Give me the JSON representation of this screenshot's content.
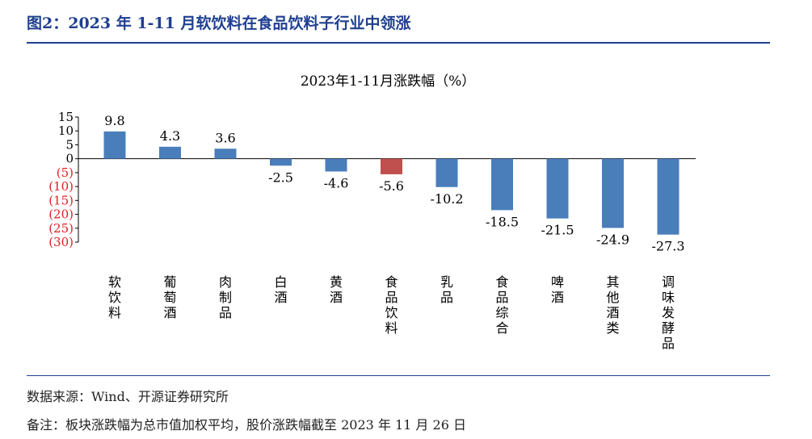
{
  "figure_title": "图2：2023 年 1-11 月软饮料在食品饮料子行业中领涨",
  "chart_data": {
    "type": "bar",
    "title": "2023年1-11月涨跌幅（%）",
    "categories": [
      "软饮料",
      "葡萄酒",
      "肉制品",
      "白酒",
      "黄酒",
      "食品饮料",
      "乳品",
      "食品综合",
      "啤酒",
      "其他酒类",
      "调味发酵品"
    ],
    "values": [
      9.8,
      4.3,
      3.6,
      -2.5,
      -4.6,
      -5.6,
      -10.2,
      -18.5,
      -21.5,
      -24.9,
      -27.3
    ],
    "data_labels": [
      "9.8",
      "4.3",
      "3.6",
      "-2.5",
      "-4.6",
      "-5.6",
      "-10.2",
      "-18.5",
      "-21.5",
      "-24.9",
      "-27.3"
    ],
    "ylim": [
      -30,
      15
    ],
    "yticks": [
      15,
      10,
      5,
      0,
      -5,
      -10,
      -15,
      -20,
      -25,
      -30
    ],
    "ytick_labels": [
      "15",
      "10",
      "5",
      "0",
      "(5)",
      "(10)",
      "(15)",
      "(20)",
      "(25)",
      "(30)"
    ],
    "xlabel": "",
    "ylabel": "",
    "grid": false,
    "legend": "none",
    "colors": {
      "bar": "#4a7ebb",
      "highlight_bar": "#c0504d",
      "negative_tick": "#e02020",
      "positive_tick": "#000000",
      "title_color": "#1f3f8f"
    },
    "highlight_category": "食品饮料"
  },
  "footer": {
    "source": "数据来源：Wind、开源证券研究所",
    "note": "备注：板块涨跌幅为总市值加权平均，股价涨跌幅截至 2023 年 11 月 26 日"
  }
}
